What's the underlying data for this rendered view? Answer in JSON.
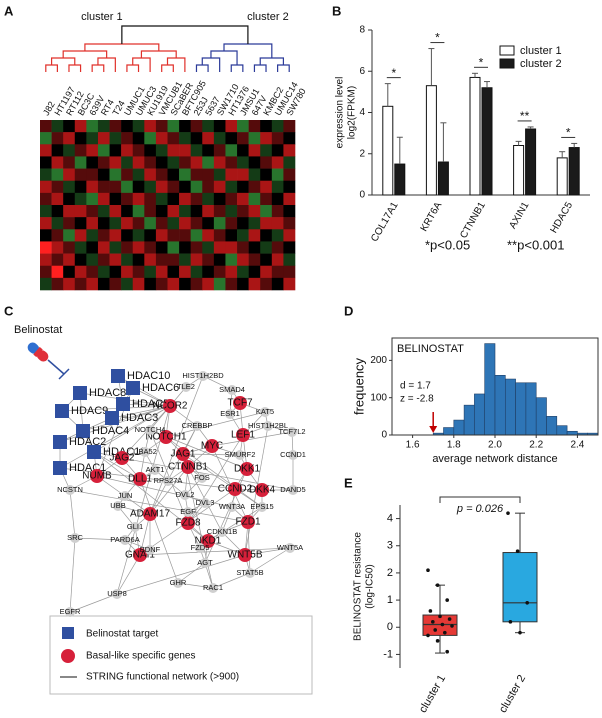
{
  "panel_labels": [
    "A",
    "B",
    "C",
    "D",
    "E"
  ],
  "chart_data": [
    {
      "type": "heatmap",
      "clusters": [
        {
          "name": "cluster 1",
          "color": "#e0302a",
          "columns": [
            "J82",
            "HT1197",
            "RT112",
            "BC3C",
            "639V",
            "RT4",
            "T24",
            "UMUC1",
            "UMUC3",
            "KU1919",
            "VMCUB1",
            "SCaBER",
            "BFTC905"
          ]
        },
        {
          "name": "cluster 2",
          "color": "#2b3a99",
          "columns": [
            "253J",
            "5637",
            "SW1710",
            "HT1376",
            "JMSU1",
            "647V",
            "KMBC2",
            "UMUC14",
            "SW780"
          ]
        }
      ],
      "values": [
        [
          1,
          -1,
          0,
          2,
          -2,
          -1,
          1,
          0,
          -1,
          2,
          1,
          -2,
          0,
          1,
          -1,
          0,
          2,
          -2,
          1,
          0,
          -1,
          1
        ],
        [
          -2,
          1,
          2,
          0,
          -1,
          2,
          -1,
          1,
          0,
          -2,
          2,
          1,
          -1,
          0,
          2,
          -1,
          0,
          1,
          -2,
          2,
          1,
          0
        ],
        [
          2,
          0,
          -1,
          1,
          2,
          -2,
          0,
          2,
          1,
          0,
          -1,
          2,
          2,
          -1,
          0,
          1,
          -2,
          0,
          2,
          -1,
          0,
          2
        ],
        [
          0,
          2,
          1,
          -2,
          0,
          1,
          2,
          -1,
          2,
          1,
          0,
          -1,
          1,
          2,
          -2,
          2,
          1,
          -1,
          0,
          1,
          2,
          -1
        ],
        [
          -1,
          -2,
          2,
          1,
          1,
          0,
          -2,
          1,
          -1,
          2,
          1,
          0,
          -2,
          1,
          1,
          -1,
          2,
          2,
          -1,
          0,
          -2,
          1
        ],
        [
          2,
          1,
          -1,
          0,
          2,
          1,
          1,
          -2,
          0,
          -1,
          2,
          1,
          0,
          -2,
          1,
          2,
          -1,
          0,
          1,
          2,
          -1,
          0
        ],
        [
          1,
          2,
          0,
          -1,
          -2,
          2,
          0,
          1,
          2,
          1,
          -1,
          0,
          2,
          1,
          -1,
          0,
          1,
          2,
          -2,
          1,
          0,
          2
        ],
        [
          -1,
          0,
          2,
          2,
          1,
          -1,
          2,
          0,
          -2,
          1,
          0,
          2,
          -1,
          0,
          2,
          1,
          -1,
          1,
          2,
          -2,
          1,
          0
        ],
        [
          2,
          -1,
          1,
          0,
          2,
          0,
          -1,
          2,
          1,
          -2,
          1,
          -1,
          2,
          1,
          0,
          -2,
          1,
          0,
          -1,
          2,
          2,
          1
        ],
        [
          0,
          1,
          -2,
          2,
          -1,
          1,
          2,
          0,
          -1,
          0,
          2,
          1,
          1,
          -2,
          2,
          1,
          0,
          -1,
          2,
          0,
          -1,
          2
        ],
        [
          3,
          2,
          1,
          -1,
          0,
          2,
          -1,
          1,
          2,
          1,
          0,
          -2,
          0,
          1,
          -1,
          2,
          2,
          1,
          0,
          -1,
          1,
          0
        ],
        [
          2,
          1,
          2,
          0,
          -1,
          1,
          2,
          -1,
          0,
          2,
          1,
          1,
          -1,
          2,
          1,
          0,
          -2,
          2,
          1,
          0,
          2,
          -1
        ],
        [
          1,
          3,
          0,
          2,
          1,
          -1,
          0,
          2,
          1,
          -1,
          2,
          0,
          2,
          -1,
          0,
          1,
          2,
          -1,
          0,
          2,
          1,
          1
        ],
        [
          -1,
          1,
          2,
          1,
          2,
          0,
          1,
          -1,
          2,
          0,
          1,
          2,
          0,
          1,
          2,
          -2,
          1,
          0,
          2,
          1,
          0,
          2
        ]
      ],
      "vlim": [
        -3,
        3
      ],
      "low_color": "#3cb043",
      "high_color": "#ff2020"
    },
    {
      "type": "bar",
      "ylabel": [
        "expression level",
        "log2(FPKM)"
      ],
      "categories": [
        "COL17A1",
        "KRT6A",
        "CTNNB1",
        "AXIN1",
        "HDAC5"
      ],
      "series": [
        {
          "name": "cluster 1",
          "color": "#ffffff",
          "values": [
            4.3,
            5.3,
            5.7,
            2.4,
            1.8
          ],
          "errors": [
            1.1,
            1.8,
            0.2,
            0.2,
            0.3
          ]
        },
        {
          "name": "cluster 2",
          "color": "#1a1a1a",
          "values": [
            1.5,
            1.6,
            5.2,
            3.2,
            2.3
          ],
          "errors": [
            1.3,
            1.9,
            0.3,
            0.1,
            0.2
          ]
        }
      ],
      "significance": [
        "*",
        "*",
        "*",
        "**",
        "*"
      ],
      "footnotes": [
        "*p<0.05",
        "**p<0.001"
      ],
      "ylim": [
        0,
        8
      ],
      "yticks": [
        0,
        2,
        4,
        6,
        8
      ]
    },
    {
      "type": "histogram",
      "title": "BELINOSTAT",
      "annotations": [
        "d = 1.7",
        "z = -2.8"
      ],
      "marker_x": 1.7,
      "marker_color": "#c00000",
      "xlabel": "average network distance",
      "ylabel": "frequency",
      "bins": [
        1.7,
        1.75,
        1.8,
        1.85,
        1.9,
        1.95,
        2.0,
        2.05,
        2.1,
        2.15,
        2.2,
        2.25,
        2.3,
        2.35,
        2.4,
        2.45,
        2.5
      ],
      "values": [
        5,
        20,
        40,
        80,
        110,
        245,
        160,
        150,
        140,
        140,
        100,
        50,
        25,
        10,
        5,
        5
      ],
      "color": "#2e75b6",
      "xlim": [
        1.5,
        2.5
      ],
      "xticks": [
        1.6,
        1.8,
        {
          "value": 2.0,
          "label": "2.0"
        },
        2.2,
        2.4
      ],
      "ylim": [
        0,
        260
      ],
      "yticks": [
        0,
        100,
        200
      ]
    },
    {
      "type": "box",
      "ylabel": [
        "BELINOSTAT resistance",
        "(log-IC50)"
      ],
      "annotation": "p = 0.026",
      "categories": [
        "cluster 1",
        "cluster 2"
      ],
      "boxes": [
        {
          "color": "#e53935",
          "min": -0.95,
          "q1": -0.3,
          "median": 0.1,
          "q3": 0.45,
          "max": 1.55,
          "points": [
            2.1,
            1.55,
            1.0,
            0.6,
            0.4,
            0.3,
            0.2,
            0.1,
            0.05,
            -0.1,
            -0.2,
            -0.3,
            -0.5,
            -0.9
          ]
        },
        {
          "color": "#29a8e0",
          "min": -0.2,
          "q1": 0.2,
          "median": 0.9,
          "q3": 2.75,
          "max": 4.2,
          "points": [
            4.2,
            2.8,
            0.9,
            0.2,
            -0.2
          ]
        }
      ],
      "ylim": [
        -1.5,
        4.5
      ],
      "yticks": [
        -1,
        0,
        1,
        2,
        3,
        4
      ]
    }
  ],
  "network": {
    "drug": "Belinostat",
    "belinostat_targets": [
      "HDAC10",
      "HDAC6",
      "HDAC8",
      "HDAC5",
      "HDAC9",
      "HDAC3",
      "HDAC4",
      "HDAC2",
      "HDAC11",
      "HDAC1"
    ],
    "basal_like_genes": [
      "NCOR2",
      "TCF7",
      "LEF1",
      "MYC",
      "NOTCH1",
      "JAG1",
      "JAG2",
      "CTNNB1",
      "DKK1",
      "NUMB",
      "DLL1",
      "CCND2",
      "DKK4",
      "ADAM17",
      "FZD8",
      "FZD1",
      "NKD1",
      "GNAI1",
      "WNT5B"
    ],
    "other_genes": [
      "HIST1H2BD",
      "TLE2",
      "SMAD4",
      "KAT5",
      "ESR1",
      "HIST1H2BL",
      "CREBBP",
      "NOTCH4",
      "TCF7L2",
      "UBA52",
      "SMURF2",
      "CCND1",
      "AKT1",
      "RPS27A",
      "NCSTN",
      "FOS",
      "DVL2",
      "DAND5",
      "JUN",
      "DVL3",
      "WNT3A",
      "EPS15",
      "UBB",
      "EGF",
      "CDKN1B",
      "GLI1",
      "PARD6A",
      "FZD5",
      "WNT5A",
      "SRC",
      "BDNF",
      "AGT",
      "STAT5B",
      "GHR",
      "RAC1",
      "USP8",
      "EGFR"
    ],
    "legend": [
      "Belinostat target",
      "Basal-like specific genes",
      "STRING functional network (>900)"
    ]
  }
}
